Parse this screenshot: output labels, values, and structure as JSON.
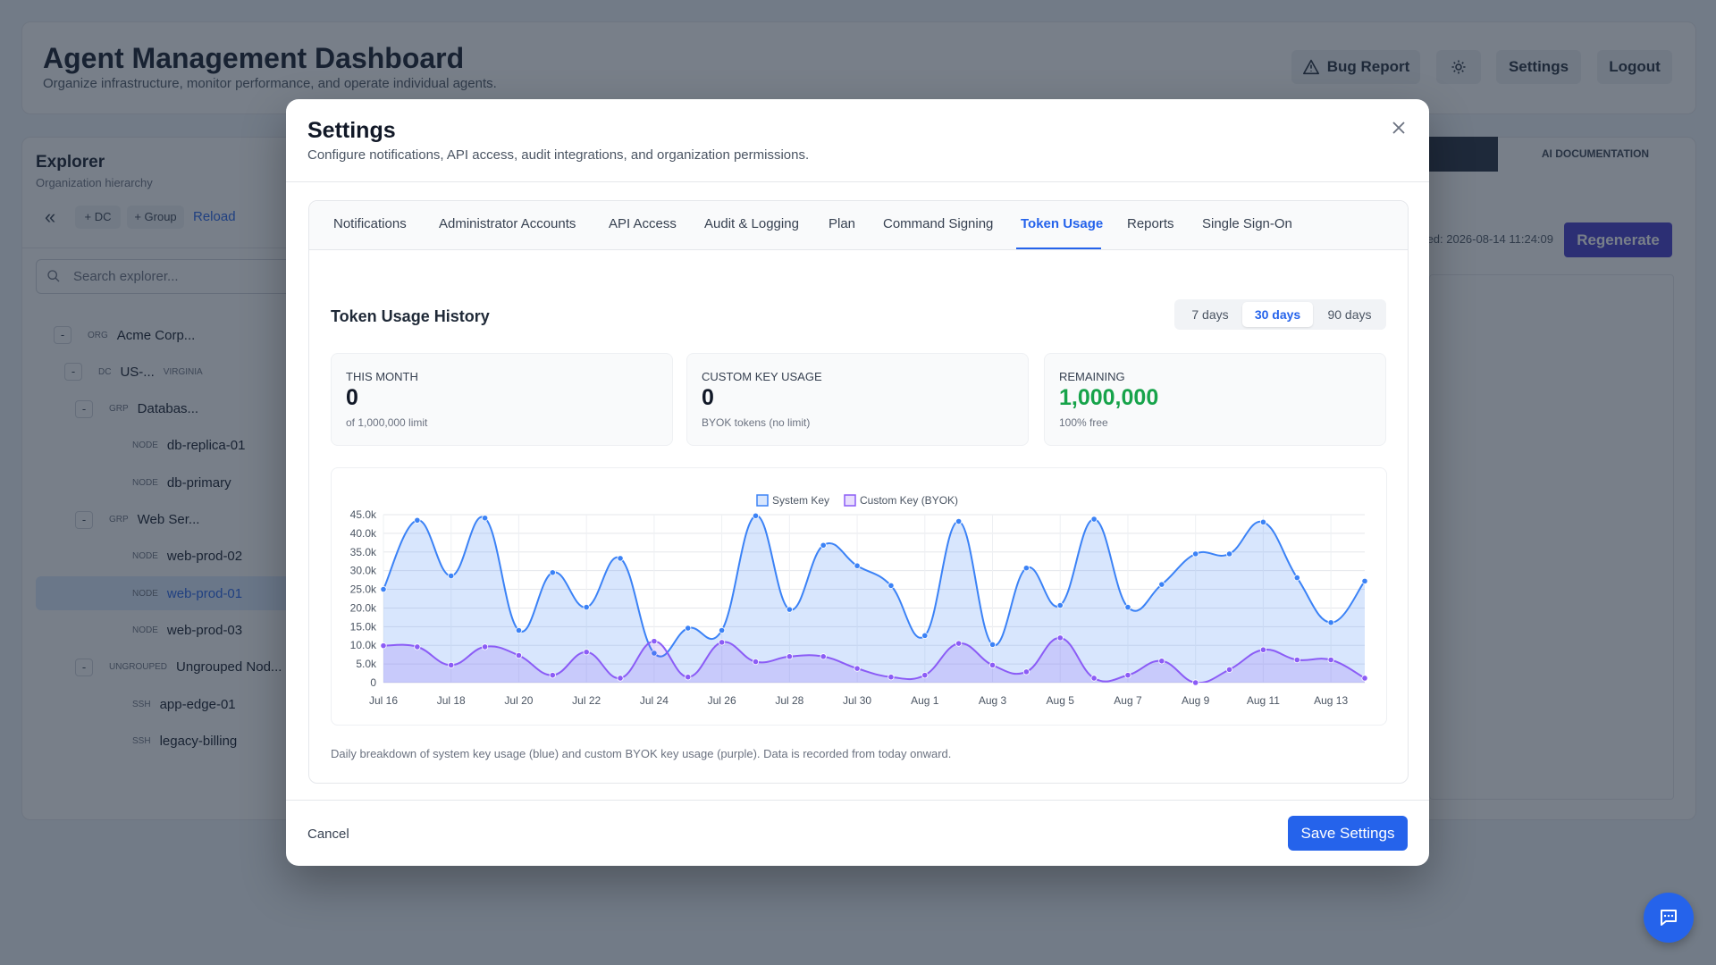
{
  "header": {
    "title": "Agent Management Dashboard",
    "subtitle": "Organize infrastructure, monitor performance, and operate individual agents.",
    "buttons": [
      "Bug Report",
      "Settings",
      "Logout"
    ]
  },
  "explorer": {
    "title": "Explorer",
    "subtitle": "Organization hierarchy",
    "toolbar": [
      "+ DC",
      "+ Group",
      "Reload"
    ],
    "search_placeholder": "Search explorer...",
    "tree": [
      {
        "toggle": "-",
        "kind": "ORG",
        "label": "Acme Corp...",
        "children": [
          {
            "toggle": "-",
            "kind": "DC",
            "label": "US-...",
            "extra": "VIRGINIA",
            "children": [
              {
                "toggle": "-",
                "kind": "GRP",
                "label": "Databas...",
                "children": [
                  {
                    "kind": "NODE",
                    "label": "db-replica-01"
                  },
                  {
                    "kind": "NODE",
                    "label": "db-primary"
                  }
                ]
              },
              {
                "toggle": "-",
                "kind": "GRP",
                "label": "Web Ser...",
                "children": [
                  {
                    "kind": "NODE",
                    "label": "web-prod-02"
                  },
                  {
                    "kind": "NODE",
                    "label": "web-prod-01",
                    "selected": true
                  },
                  {
                    "kind": "NODE",
                    "label": "web-prod-03"
                  }
                ]
              },
              {
                "toggle": "-",
                "kind": "UNGROUPED",
                "label": "Ungrouped Nod...",
                "children": [
                  {
                    "kind": "SSH",
                    "label": "app-edge-01"
                  },
                  {
                    "kind": "SSH",
                    "label": "legacy-billing"
                  }
                ]
              }
            ]
          }
        ]
      }
    ]
  },
  "main": {
    "tab": "AI DOCUMENTATION",
    "timestamp": "ed: 2026-08-14 11:24:09",
    "button": "Regenerate"
  },
  "modal": {
    "title": "Settings",
    "description": "Configure notifications, API access, audit integrations, and organization permissions.",
    "tabs": [
      "Notifications",
      "Administrator Accounts",
      "API Access",
      "Audit & Logging",
      "Plan",
      "Command Signing",
      "Token Usage",
      "Reports",
      "Single Sign-On"
    ],
    "active_tab": 6,
    "section_title": "Token Usage History",
    "ranges": [
      "7 days",
      "30 days",
      "90 days"
    ],
    "active_range": 1,
    "stats": [
      {
        "label": "THIS MONTH",
        "value": "0",
        "note": "of 1,000,000 limit"
      },
      {
        "label": "CUSTOM KEY USAGE",
        "value": "0",
        "note": "BYOK tokens (no limit)"
      },
      {
        "label": "REMAINING",
        "value": "1,000,000",
        "note": "100% free",
        "highlight": true
      }
    ],
    "footnote": "Daily breakdown of system key usage (blue) and custom BYOK key usage (purple). Data is recorded from today onward.",
    "cancel": "Cancel",
    "save": "Save Settings"
  },
  "chart_data": {
    "type": "line",
    "categories": [
      "Jul 16",
      null,
      "Jul 18",
      null,
      "Jul 20",
      null,
      "Jul 22",
      null,
      "Jul 24",
      null,
      "Jul 26",
      null,
      "Jul 28",
      null,
      "Jul 30",
      null,
      "Aug 1",
      null,
      "Aug 3",
      null,
      "Aug 5",
      null,
      "Aug 7",
      null,
      "Aug 9",
      null,
      "Aug 11",
      null,
      "Aug 13",
      null
    ],
    "series": [
      {
        "name": "System Key",
        "color": "#3b82f6",
        "values": [
          25000,
          43500,
          28600,
          44100,
          14000,
          29500,
          20200,
          33300,
          7900,
          14600,
          14000,
          44700,
          19600,
          36800,
          31300,
          26000,
          12600,
          43200,
          10200,
          30700,
          20700,
          43800,
          20200,
          26300,
          34500,
          34500,
          43000,
          28100,
          16100,
          27200
        ]
      },
      {
        "name": "Custom Key (BYOK)",
        "color": "#8b5cf6",
        "values": [
          9900,
          9600,
          4700,
          9600,
          7300,
          2000,
          8200,
          1200,
          11100,
          1500,
          10800,
          5600,
          7000,
          7000,
          3800,
          1500,
          2000,
          10500,
          4700,
          2900,
          12000,
          1200,
          2000,
          5800,
          0,
          3500,
          8800,
          6100,
          6100,
          1200
        ]
      }
    ],
    "ylim": [
      0,
      45000
    ],
    "yticks": [
      0,
      {
        "value": 5000,
        "label": "5.0k"
      },
      {
        "value": 10000,
        "label": "10.0k"
      },
      {
        "value": 15000,
        "label": "15.0k"
      },
      {
        "value": 20000,
        "label": "20.0k"
      },
      {
        "value": 25000,
        "label": "25.0k"
      },
      {
        "value": 30000,
        "label": "30.0k"
      },
      {
        "value": 35000,
        "label": "35.0k"
      },
      {
        "value": 40000,
        "label": "40.0k"
      },
      {
        "value": 45000,
        "label": "45.0k"
      }
    ],
    "grid": true,
    "legend": "top"
  }
}
